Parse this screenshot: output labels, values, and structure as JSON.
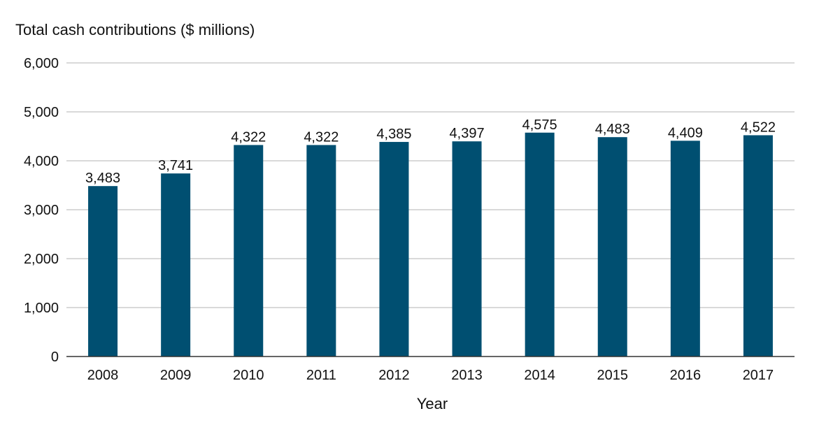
{
  "chart_data": {
    "type": "bar",
    "title": "",
    "ylabel": "Total cash contributions ($ millions)",
    "xlabel": "Year",
    "categories": [
      "2008",
      "2009",
      "2010",
      "2011",
      "2012",
      "2013",
      "2014",
      "2015",
      "2016",
      "2017"
    ],
    "values": [
      3483,
      3741,
      4322,
      4322,
      4385,
      4397,
      4575,
      4483,
      4409,
      4522
    ],
    "data_labels": [
      "3,483",
      "3,741",
      "4,322",
      "4,322",
      "4,385",
      "4,397",
      "4,575",
      "4,483",
      "4,409",
      "4,522"
    ],
    "ylim": [
      0,
      6000
    ],
    "yticks": [
      0,
      1000,
      2000,
      3000,
      4000,
      5000,
      6000
    ],
    "ytick_labels": [
      "0",
      "1,000",
      "2,000",
      "3,000",
      "4,000",
      "5,000",
      "6,000"
    ],
    "grid": true,
    "legend": "none",
    "colors": {
      "bar": "#004f71",
      "grid": "#b3b3b3",
      "axis": "#333333",
      "text": "#111111"
    }
  }
}
